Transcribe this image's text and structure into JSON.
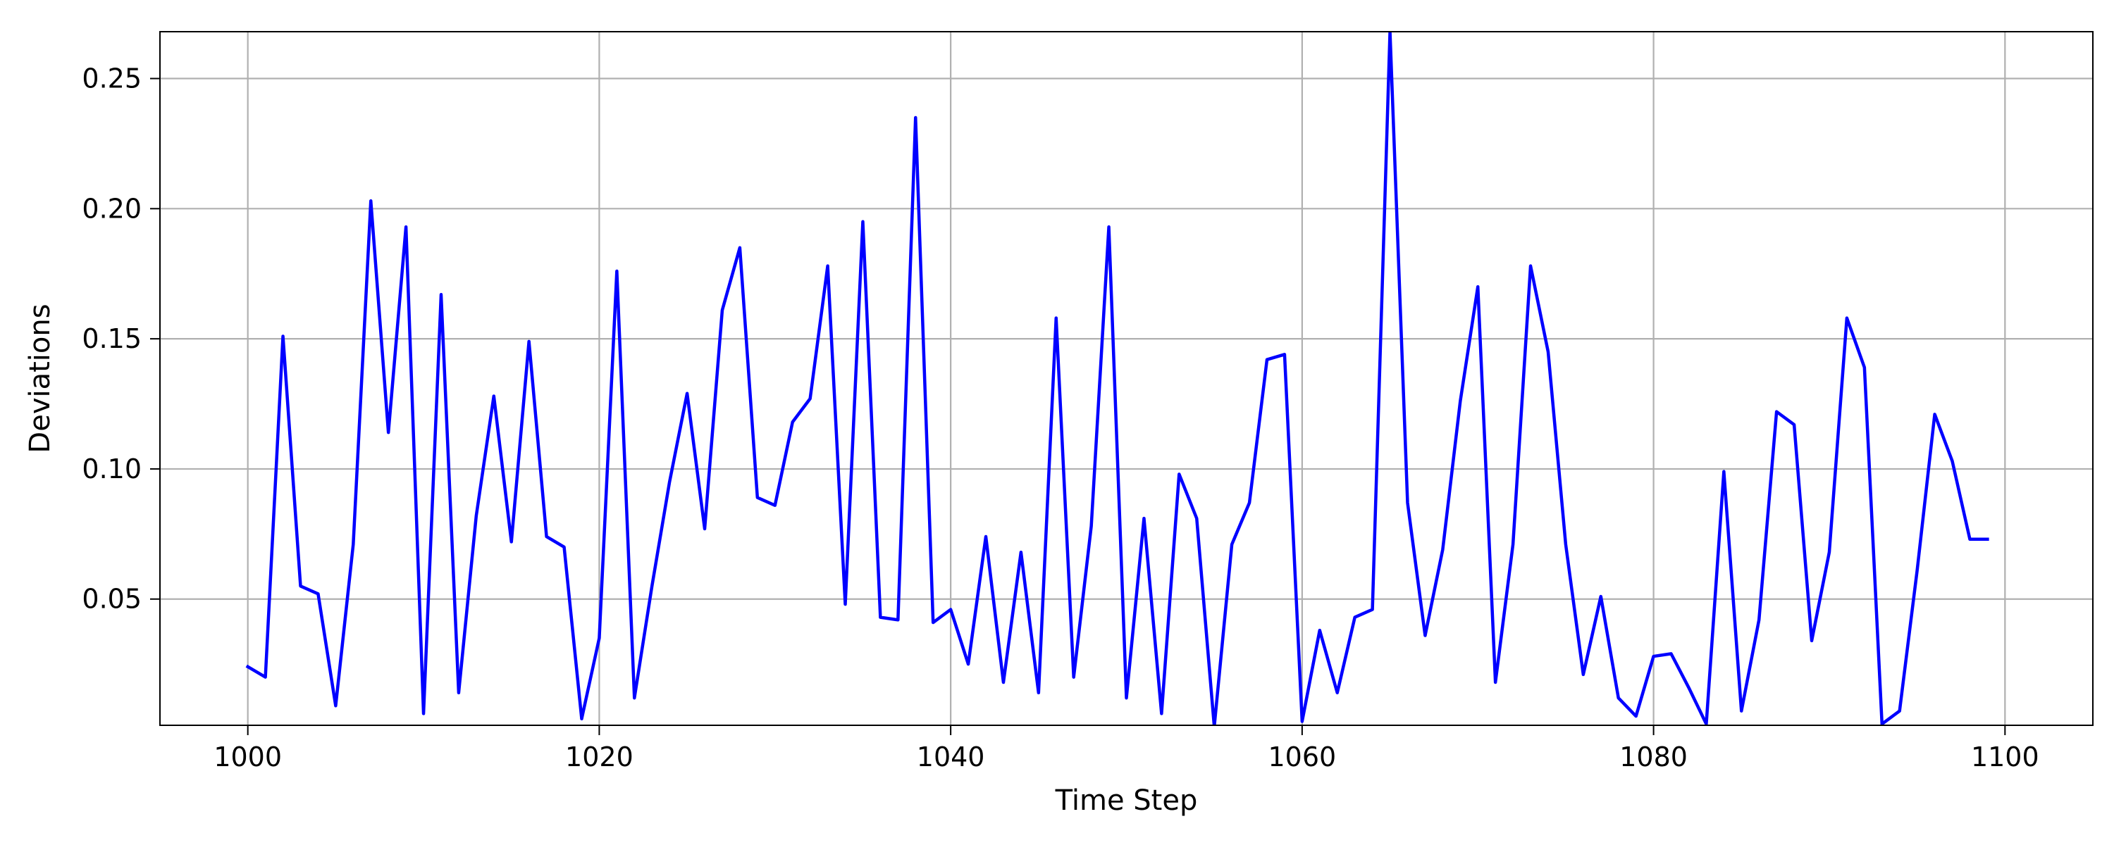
{
  "chart_data": {
    "type": "line",
    "title": "",
    "xlabel": "Time Step",
    "ylabel": "Deviations",
    "xlim": [
      995,
      1105
    ],
    "ylim": [
      0.0015,
      0.268
    ],
    "grid": true,
    "x_ticks": [
      1000,
      1020,
      1040,
      1060,
      1080,
      1100
    ],
    "y_ticks": [
      0.05,
      0.1,
      0.15,
      0.2,
      0.25
    ],
    "x_tick_labels": [
      "1000",
      "1020",
      "1040",
      "1060",
      "1080",
      "1100"
    ],
    "y_tick_labels": [
      "0.05",
      "0.10",
      "0.15",
      "0.20",
      "0.25"
    ],
    "series": [
      {
        "color": "#0000ff",
        "x_start": 1000,
        "x_step": 1,
        "values": [
          0.024,
          0.02,
          0.151,
          0.055,
          0.052,
          0.009,
          0.071,
          0.203,
          0.114,
          0.193,
          0.006,
          0.167,
          0.014,
          0.082,
          0.128,
          0.072,
          0.149,
          0.074,
          0.07,
          0.004,
          0.035,
          0.176,
          0.012,
          0.055,
          0.095,
          0.129,
          0.077,
          0.161,
          0.185,
          0.089,
          0.086,
          0.118,
          0.127,
          0.178,
          0.048,
          0.195,
          0.043,
          0.042,
          0.235,
          0.041,
          0.046,
          0.025,
          0.074,
          0.018,
          0.068,
          0.014,
          0.158,
          0.02,
          0.078,
          0.193,
          0.012,
          0.081,
          0.006,
          0.098,
          0.081,
          0.001,
          0.071,
          0.087,
          0.142,
          0.144,
          0.003,
          0.038,
          0.014,
          0.043,
          0.046,
          0.268,
          0.087,
          0.036,
          0.069,
          0.126,
          0.17,
          0.018,
          0.071,
          0.178,
          0.145,
          0.071,
          0.021,
          0.051,
          0.012,
          0.005,
          0.028,
          0.029,
          0.016,
          0.002,
          0.099,
          0.007,
          0.042,
          0.122,
          0.117,
          0.034,
          0.068,
          0.158,
          0.139,
          0.002,
          0.007,
          0.061,
          0.121,
          0.103,
          0.073,
          0.073
        ]
      }
    ]
  }
}
